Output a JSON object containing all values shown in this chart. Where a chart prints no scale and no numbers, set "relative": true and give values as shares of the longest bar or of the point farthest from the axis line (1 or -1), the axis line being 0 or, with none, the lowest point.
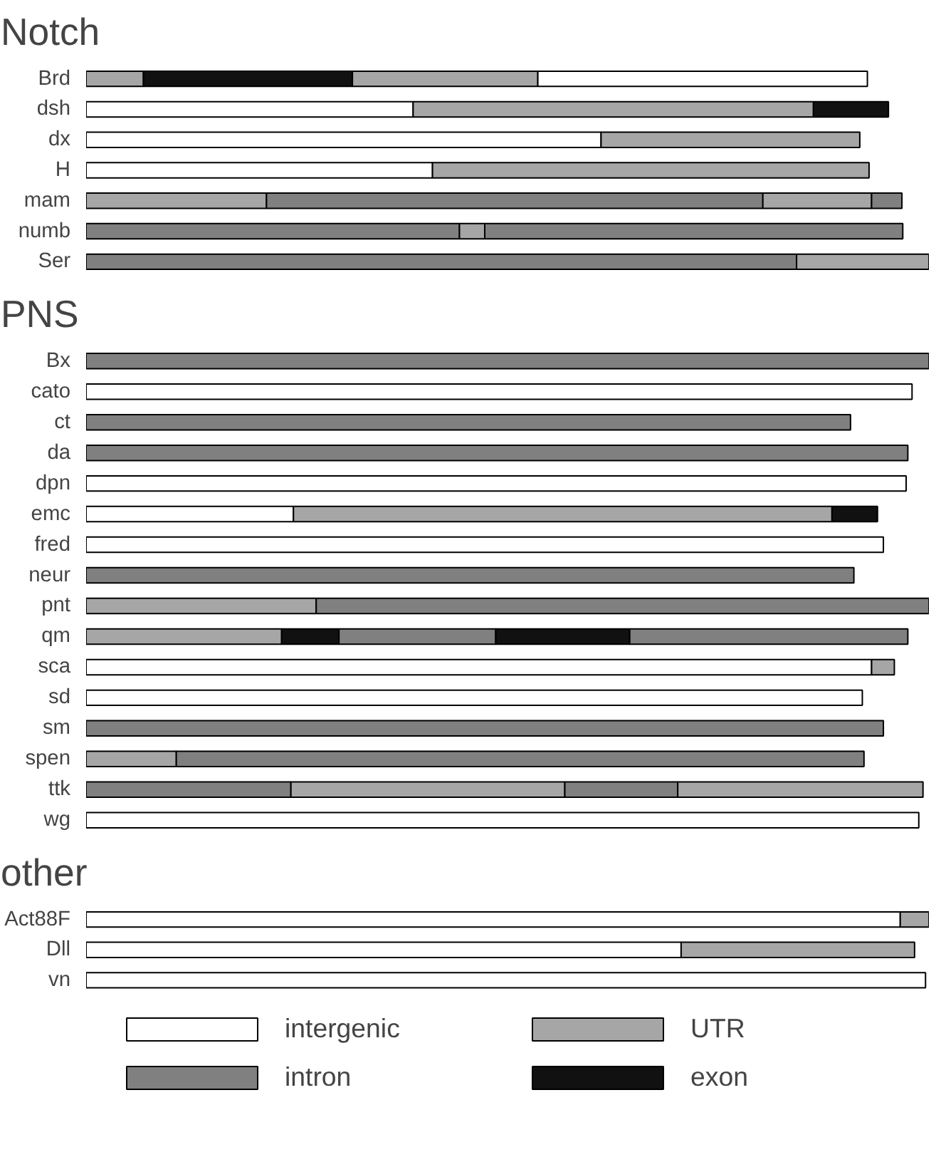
{
  "chart_data": [
    {
      "type": "bar",
      "orientation": "horizontal",
      "stacked": true,
      "relative": true,
      "title": "Notch",
      "legend": false,
      "categories": [
        "Brd",
        "dsh",
        "dx",
        "H",
        "mam",
        "numb",
        "Ser"
      ],
      "series": [
        {
          "values": [
            0.068,
            0.388,
            0.611,
            0.411,
            0.214,
            0.443,
            0.843
          ],
          "colors": [
            "#a6a6a6",
            "#ffffff",
            "#ffffff",
            "#ffffff",
            "#a6a6a6",
            "#808080",
            "#808080"
          ]
        },
        {
          "values": [
            0.248,
            0.475,
            0.307,
            0.518,
            0.589,
            0.03,
            0.157
          ],
          "colors": [
            "#111111",
            "#a6a6a6",
            "#a6a6a6",
            "#a6a6a6",
            "#808080",
            "#a6a6a6",
            "#a6a6a6"
          ]
        },
        {
          "values": [
            0.22,
            0.089,
            null,
            null,
            0.129,
            0.496,
            null
          ],
          "colors": [
            "#a6a6a6",
            "#111111",
            null,
            null,
            "#a6a6a6",
            "#808080",
            null
          ]
        },
        {
          "values": [
            0.391,
            null,
            null,
            null,
            0.036,
            null,
            null
          ],
          "colors": [
            "#ffffff",
            null,
            null,
            null,
            "#808080",
            null,
            null
          ]
        }
      ]
    },
    {
      "type": "bar",
      "orientation": "horizontal",
      "stacked": true,
      "relative": true,
      "title": "PNS",
      "legend": false,
      "categories": [
        "Bx",
        "cato",
        "ct",
        "da",
        "dpn",
        "emc",
        "fred",
        "neur",
        "pnt",
        "qm",
        "sca",
        "sd",
        "sm",
        "spen",
        "ttk",
        "wg"
      ],
      "series": [
        {
          "values": [
            1.0,
            0.98,
            0.907,
            0.975,
            0.973,
            0.246,
            0.946,
            0.911,
            0.273,
            0.232,
            0.932,
            0.921,
            0.946,
            0.107,
            0.243,
            0.988
          ],
          "colors": [
            "#808080",
            "#ffffff",
            "#808080",
            "#808080",
            "#ffffff",
            "#ffffff",
            "#ffffff",
            "#808080",
            "#a6a6a6",
            "#a6a6a6",
            "#ffffff",
            "#ffffff",
            "#808080",
            "#a6a6a6",
            "#808080",
            "#ffffff"
          ]
        },
        {
          "values": [
            null,
            null,
            null,
            null,
            null,
            0.639,
            null,
            null,
            0.727,
            0.068,
            0.027,
            null,
            null,
            0.816,
            0.325,
            null
          ],
          "colors": [
            null,
            null,
            null,
            null,
            null,
            "#a6a6a6",
            null,
            null,
            "#808080",
            "#111111",
            "#a6a6a6",
            null,
            null,
            "#808080",
            "#a6a6a6",
            null
          ]
        },
        {
          "values": [
            null,
            null,
            null,
            null,
            null,
            0.054,
            null,
            null,
            null,
            0.186,
            null,
            null,
            null,
            null,
            0.134,
            null
          ],
          "colors": [
            null,
            null,
            null,
            null,
            null,
            "#111111",
            null,
            null,
            null,
            "#808080",
            null,
            null,
            null,
            null,
            "#808080",
            null
          ]
        },
        {
          "values": [
            null,
            null,
            null,
            null,
            null,
            null,
            null,
            null,
            null,
            0.159,
            null,
            null,
            null,
            null,
            0.291,
            null
          ],
          "colors": [
            null,
            null,
            null,
            null,
            null,
            null,
            null,
            null,
            null,
            "#111111",
            null,
            null,
            null,
            null,
            "#a6a6a6",
            null
          ]
        },
        {
          "values": [
            null,
            null,
            null,
            null,
            null,
            null,
            null,
            null,
            null,
            0.33,
            null,
            null,
            null,
            null,
            null,
            null
          ],
          "colors": [
            null,
            null,
            null,
            null,
            null,
            null,
            null,
            null,
            null,
            "#808080",
            null,
            null,
            null,
            null,
            null,
            null
          ]
        }
      ]
    },
    {
      "type": "bar",
      "orientation": "horizontal",
      "stacked": true,
      "relative": true,
      "title": "other",
      "legend": "bottom",
      "categories": [
        "Act88F",
        "Dll",
        "vn"
      ],
      "series": [
        {
          "name": "intergenic",
          "color": "#ffffff",
          "values": [
            0.966,
            0.706,
            0.996
          ]
        },
        {
          "name": "intron",
          "color": "#808080",
          "values": [
            null,
            null,
            null
          ]
        },
        {
          "name": "UTR",
          "color": "#a6a6a6",
          "values": [
            0.034,
            0.277,
            null
          ]
        },
        {
          "name": "exon",
          "color": "#111111",
          "values": [
            null,
            null,
            null
          ]
        }
      ]
    }
  ]
}
